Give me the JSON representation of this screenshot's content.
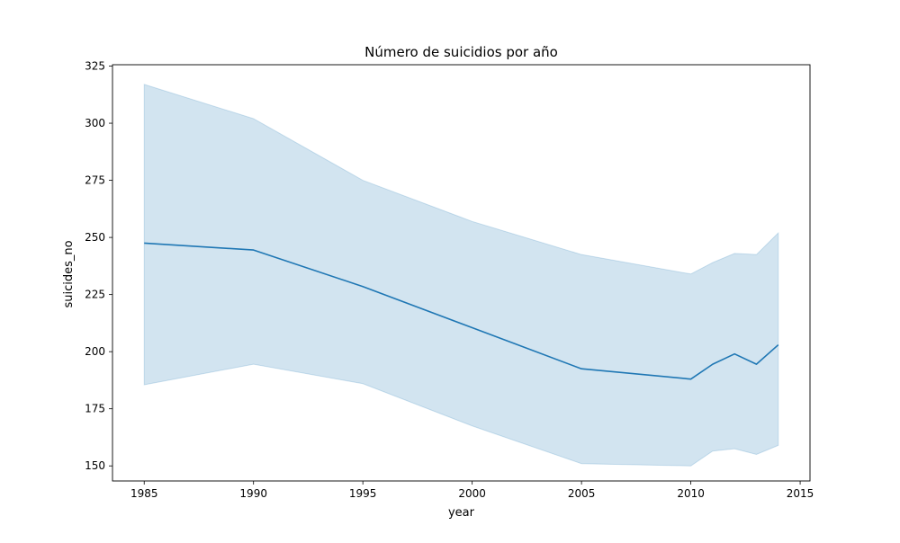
{
  "chart_data": {
    "type": "line",
    "title": "Número de suicidios por año",
    "xlabel": "year",
    "ylabel": "suicides_no",
    "x": [
      1985,
      1990,
      1995,
      2000,
      2005,
      2010,
      2011,
      2012,
      2013,
      2014
    ],
    "series": [
      {
        "values": [
          247.5,
          244.5,
          228.5,
          210.5,
          192.5,
          188,
          194.5,
          199,
          194.5,
          203
        ],
        "ci_lower": [
          185.5,
          194.5,
          186,
          167.5,
          151,
          150,
          156.5,
          157.5,
          155,
          159
        ],
        "ci_upper": [
          317,
          302,
          275,
          257,
          242.5,
          234,
          239,
          243,
          242.5,
          252
        ],
        "color": "#1f77b4",
        "band_color": "#1f77b4"
      }
    ],
    "xlim": [
      1983.55,
      2015.45
    ],
    "ylim": [
      143.4,
      325.6
    ],
    "xticks": [
      1985,
      1990,
      1995,
      2000,
      2005,
      2010,
      2015
    ],
    "yticks": [
      150,
      175,
      200,
      225,
      250,
      275,
      300,
      325
    ],
    "grid": false,
    "legend": "none"
  }
}
